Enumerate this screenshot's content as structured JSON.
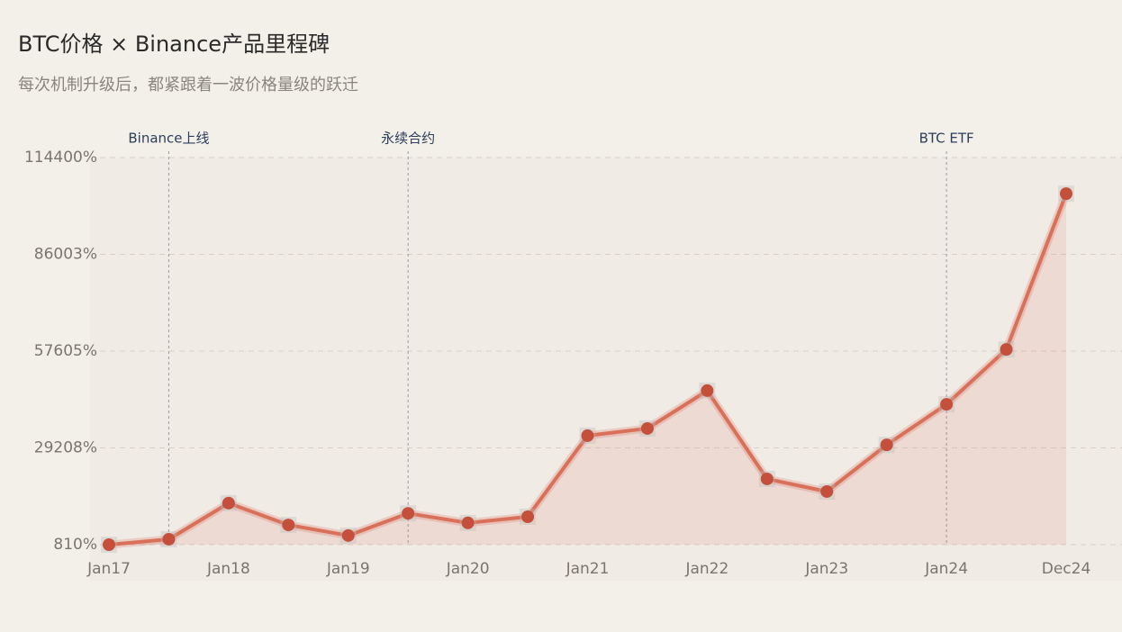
{
  "chart_data": {
    "type": "line",
    "title": "BTC价格 × Binance产品里程碑",
    "subtitle": "每次机制升级后，都紧跟着一波价格量级的跃迁",
    "categories": [
      "Jan17",
      null,
      "Jan18",
      null,
      "Jan19",
      null,
      "Jan20",
      null,
      "Jan21",
      null,
      "Jan22",
      null,
      "Jan23",
      null,
      "Jan24",
      null,
      "Dec24"
    ],
    "series": [
      {
        "name": "BTC",
        "color": "#d9705a",
        "values": [
          810,
          2400,
          13000,
          6600,
          3500,
          10000,
          7200,
          9000,
          32800,
          34900,
          46000,
          20100,
          16400,
          30100,
          42000,
          58100,
          103800
        ]
      }
    ],
    "ylim": [
      810,
      114400
    ],
    "yticks": [
      {
        "value": 810,
        "label": "810%"
      },
      {
        "value": 29208,
        "label": "29208%"
      },
      {
        "value": 57605,
        "label": "57605%"
      },
      {
        "value": 86003,
        "label": "86003%"
      },
      {
        "value": 114400,
        "label": "114400%"
      }
    ],
    "grid": true,
    "annotations": [
      {
        "text": "Binance上线",
        "at": 1
      },
      {
        "text": "永续合约",
        "at": 5
      },
      {
        "text": "BTC ETF",
        "at": 14
      }
    ]
  }
}
